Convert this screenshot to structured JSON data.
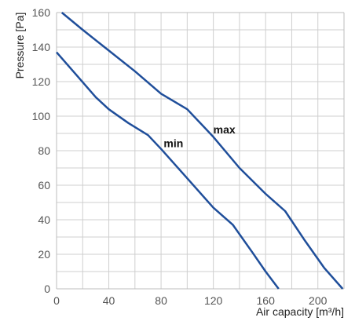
{
  "chart_data": {
    "type": "line",
    "xlabel": "Air capacity [m³/h]",
    "ylabel": "Pressure [Pa]",
    "xlim": [
      0,
      220
    ],
    "ylim": [
      0,
      160
    ],
    "x_ticks": [
      0,
      40,
      80,
      120,
      160,
      200
    ],
    "y_ticks": [
      0,
      20,
      40,
      60,
      80,
      100,
      120,
      140,
      160
    ],
    "x_minor_step": 20,
    "y_minor_step": 10,
    "grid": true,
    "line_color": "#1f4e9a",
    "series": [
      {
        "name": "max",
        "label_at": [
          120,
          90
        ],
        "points": [
          [
            4,
            160
          ],
          [
            20,
            150
          ],
          [
            40,
            138
          ],
          [
            60,
            126
          ],
          [
            80,
            113
          ],
          [
            100,
            104
          ],
          [
            120,
            88
          ],
          [
            140,
            70
          ],
          [
            160,
            55
          ],
          [
            175,
            45
          ],
          [
            190,
            28
          ],
          [
            205,
            12
          ],
          [
            219,
            0
          ]
        ]
      },
      {
        "name": "min",
        "label_at": [
          82,
          82
        ],
        "points": [
          [
            0,
            137
          ],
          [
            15,
            124
          ],
          [
            30,
            111
          ],
          [
            40,
            104
          ],
          [
            55,
            96
          ],
          [
            70,
            89
          ],
          [
            80,
            81
          ],
          [
            100,
            64
          ],
          [
            120,
            47
          ],
          [
            135,
            37
          ],
          [
            150,
            21
          ],
          [
            160,
            10
          ],
          [
            170,
            0
          ]
        ]
      }
    ]
  }
}
